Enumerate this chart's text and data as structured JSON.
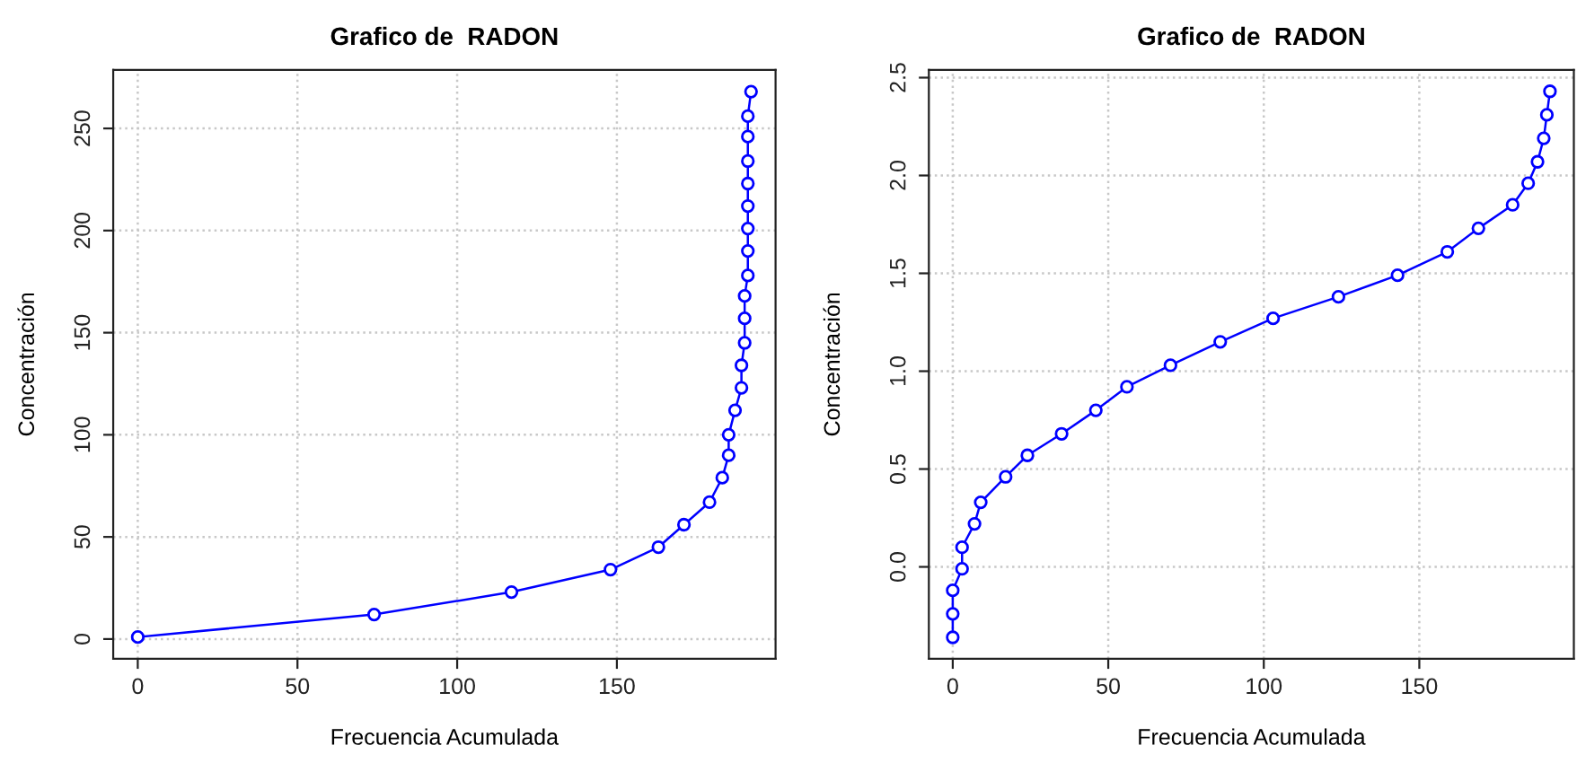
{
  "chart_data": [
    {
      "type": "line",
      "title": "Grafico de  RADON",
      "xlabel": "Frecuencia Acumulada",
      "ylabel": "Concentración",
      "series": [
        {
          "color": "#0000ff",
          "x": [
            0,
            74,
            117,
            148,
            163,
            171,
            179,
            183,
            185,
            185,
            187,
            189,
            189,
            190,
            190,
            190,
            191,
            191,
            191,
            191,
            191,
            191,
            191,
            191,
            192
          ],
          "values": [
            1,
            12,
            23,
            34,
            45,
            56,
            67,
            79,
            90,
            100,
            112,
            123,
            134,
            145,
            157,
            168,
            178,
            190,
            201,
            212,
            223,
            234,
            246,
            256,
            268
          ]
        }
      ],
      "xlim": [
        -7.68,
        199.68
      ],
      "ylim": [
        -9.7,
        278.7
      ],
      "xticks": [
        0,
        50,
        100,
        150
      ],
      "yticks": [
        0,
        50,
        100,
        150,
        200,
        250
      ],
      "grid": true,
      "marker": "circle",
      "line_style": "solid"
    },
    {
      "type": "line",
      "title": "Grafico de  RADON",
      "xlabel": "Frecuencia Acumulada",
      "ylabel": "Concentración",
      "series": [
        {
          "color": "#0000ff",
          "x": [
            0,
            0,
            0,
            3,
            3,
            7,
            9,
            17,
            24,
            35,
            46,
            56,
            70,
            86,
            103,
            124,
            143,
            159,
            169,
            180,
            185,
            188,
            190,
            191,
            192
          ],
          "values": [
            -0.36,
            -0.24,
            -0.12,
            -0.01,
            0.1,
            0.22,
            0.33,
            0.46,
            0.57,
            0.68,
            0.8,
            0.92,
            1.03,
            1.15,
            1.27,
            1.38,
            1.49,
            1.61,
            1.73,
            1.85,
            1.96,
            2.07,
            2.19,
            2.31,
            2.43
          ]
        }
      ],
      "xlim": [
        -7.68,
        199.68
      ],
      "ylim": [
        -0.47,
        2.54
      ],
      "xticks": [
        0,
        50,
        100,
        150
      ],
      "yticks": [
        {
          "value": 0,
          "label": "0.0"
        },
        {
          "value": 0.5,
          "label": "0.5"
        },
        {
          "value": 1,
          "label": "1.0"
        },
        {
          "value": 1.5,
          "label": "1.5"
        },
        {
          "value": 2,
          "label": "2.0"
        },
        {
          "value": 2.5,
          "label": "2.5"
        }
      ],
      "grid": true,
      "marker": "circle",
      "line_style": "solid"
    }
  ]
}
